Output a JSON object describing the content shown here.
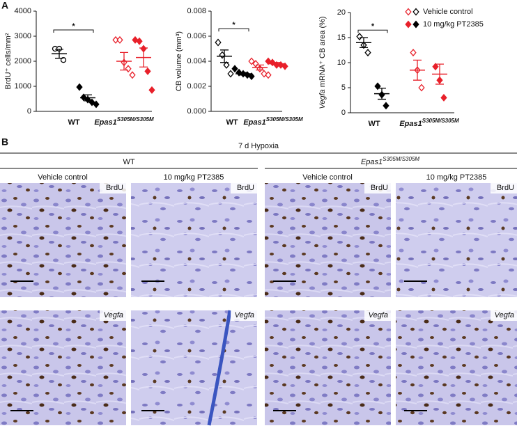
{
  "panel_a_label": "A",
  "legend": {
    "entries": [
      "Vehicle control",
      "10 mg/kg PT2385"
    ]
  },
  "chart_data": [
    {
      "type": "dot",
      "y_label": [
        "BrdU⁺ cells/mm²"
      ],
      "italic_parts": [],
      "ylim": [
        0,
        4000
      ],
      "yticks": [
        0,
        1000,
        2000,
        3000,
        4000
      ],
      "categories": [
        {
          "name": "WT"
        },
        {
          "name": "Epas1",
          "sup": "S305M/S305M"
        }
      ],
      "colors": [
        "#000000",
        "#000000",
        "#e8202a",
        "#e8202a"
      ],
      "filled": [
        false,
        true,
        false,
        true
      ],
      "markers": [
        "circle",
        "diamond",
        "diamond",
        "diamond"
      ],
      "points": [
        [
          2500,
          2500,
          2050
        ],
        [
          970,
          560,
          470,
          360,
          280
        ],
        [
          2850,
          2850,
          1950,
          1700,
          1450
        ],
        [
          2850,
          2800,
          2500,
          1600,
          850
        ]
      ],
      "means": [
        2300,
        540,
        2000,
        2150
      ],
      "sems": [
        180,
        120,
        350,
        380
      ],
      "significance": {
        "label": "*",
        "between": [
          0,
          1
        ],
        "y": 3250
      }
    },
    {
      "type": "dot",
      "y_label": [
        "CB volume (mm³)"
      ],
      "italic_parts": [],
      "ylim": [
        0,
        0.008
      ],
      "yticks": [
        {
          "value": 0,
          "label": "0.000"
        },
        {
          "value": 0.002,
          "label": "0.002"
        },
        {
          "value": 0.004,
          "label": "0.004"
        },
        {
          "value": 0.006,
          "label": "0.006"
        },
        {
          "value": 0.008,
          "label": "0.008"
        }
      ],
      "categories": [
        {
          "name": "WT"
        },
        {
          "name": "Epas1",
          "sup": "S305M/S305M"
        }
      ],
      "colors": [
        "#000000",
        "#000000",
        "#e8202a",
        "#e8202a"
      ],
      "filled": [
        false,
        true,
        false,
        true
      ],
      "markers": [
        "diamond",
        "diamond",
        "diamond",
        "diamond"
      ],
      "points": [
        [
          0.0055,
          0.0045,
          0.0037,
          0.003
        ],
        [
          0.0034,
          0.0031,
          0.003,
          0.0029,
          0.0028
        ],
        [
          0.004,
          0.0038,
          0.0034,
          0.003,
          0.0029
        ],
        [
          0.004,
          0.0039,
          0.0037,
          0.0037,
          0.0036
        ]
      ],
      "means": [
        0.0044,
        0.003,
        0.0035,
        0.0038
      ],
      "sems": [
        0.0005,
        0.0001,
        0.0002,
        0.0001
      ],
      "significance": {
        "label": "*",
        "between": [
          0,
          1
        ],
        "y": 0.0066
      }
    },
    {
      "type": "dot",
      "y_label": [
        "Vegfa",
        " mRNA⁺ CB area (%)"
      ],
      "italic_parts": [
        0
      ],
      "ylim": [
        0,
        20
      ],
      "yticks": [
        0,
        5,
        10,
        15,
        20
      ],
      "categories": [
        {
          "name": "WT"
        },
        {
          "name": "Epas1",
          "sup": "S305M/S305M"
        }
      ],
      "colors": [
        "#000000",
        "#000000",
        "#e8202a",
        "#e8202a"
      ],
      "filled": [
        false,
        true,
        false,
        true
      ],
      "markers": [
        "diamond",
        "diamond",
        "diamond",
        "diamond"
      ],
      "points": [
        [
          15.2,
          13.5,
          12
        ],
        [
          5.3,
          3.6,
          1.4
        ],
        [
          12,
          8.5,
          5
        ],
        [
          9.2,
          6.5,
          3
        ]
      ],
      "means": [
        14,
        3.8,
        8.5,
        7.7
      ],
      "sems": [
        1,
        1.1,
        2,
        2
      ],
      "significance": {
        "label": "*",
        "between": [
          0,
          1
        ],
        "y": 16.5
      }
    }
  ],
  "panel_b": {
    "label": "B",
    "condition": "7 d Hypoxia",
    "genotypes": [
      {
        "name": "WT"
      },
      {
        "name": "Epas1",
        "sup": "S305M/S305M"
      }
    ],
    "columns": [
      "Vehicle control",
      "10 mg/kg PT2385",
      "Vehicle control",
      "10 mg/kg PT2385"
    ],
    "stains": [
      "BrdU",
      "Vegfa"
    ]
  }
}
